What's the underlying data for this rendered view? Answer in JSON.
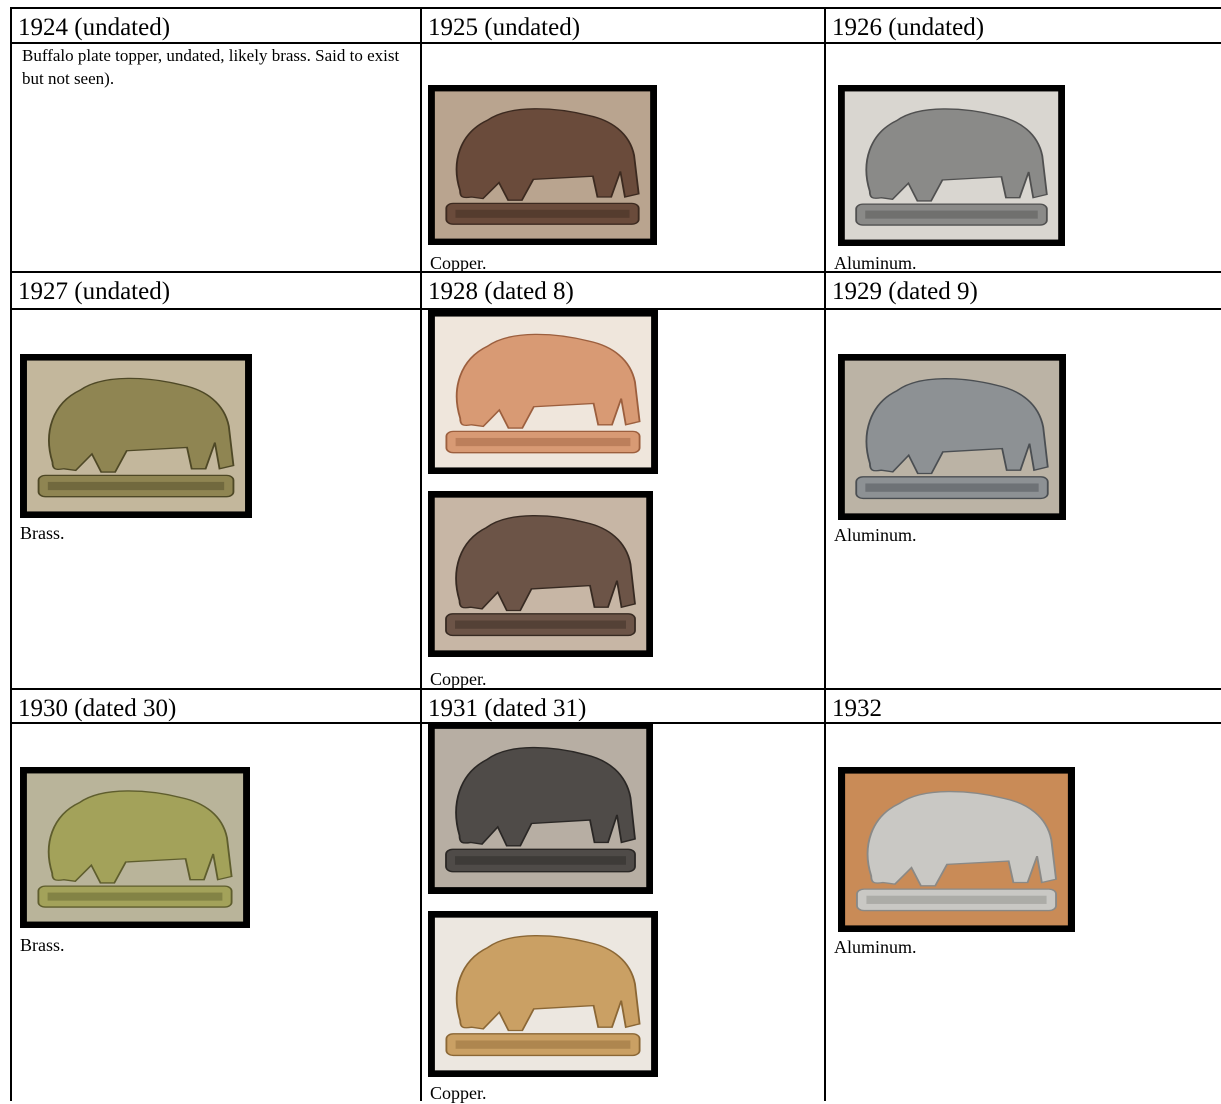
{
  "table": {
    "rows": [
      {
        "cells": [
          {
            "heading": "1924 (undated)",
            "note": "Buffalo plate topper, undated, likely brass. Said to exist but not seen)."
          },
          {
            "heading": "1925 (undated)",
            "caption": "Copper."
          },
          {
            "heading": "1926 (undated)",
            "caption": "Aluminum."
          }
        ]
      },
      {
        "cells": [
          {
            "heading": "1927 (undated)",
            "caption": "Brass."
          },
          {
            "heading": "1928 (dated 8)",
            "caption": "Copper."
          },
          {
            "heading": "1929 (dated 9)",
            "caption": "Aluminum."
          }
        ]
      },
      {
        "cells": [
          {
            "heading": "1930 (dated 30)",
            "caption": "Brass."
          },
          {
            "heading": "1931 (dated 31)",
            "caption": "Copper."
          },
          {
            "heading": "1932",
            "caption": "Aluminum."
          }
        ]
      }
    ]
  }
}
